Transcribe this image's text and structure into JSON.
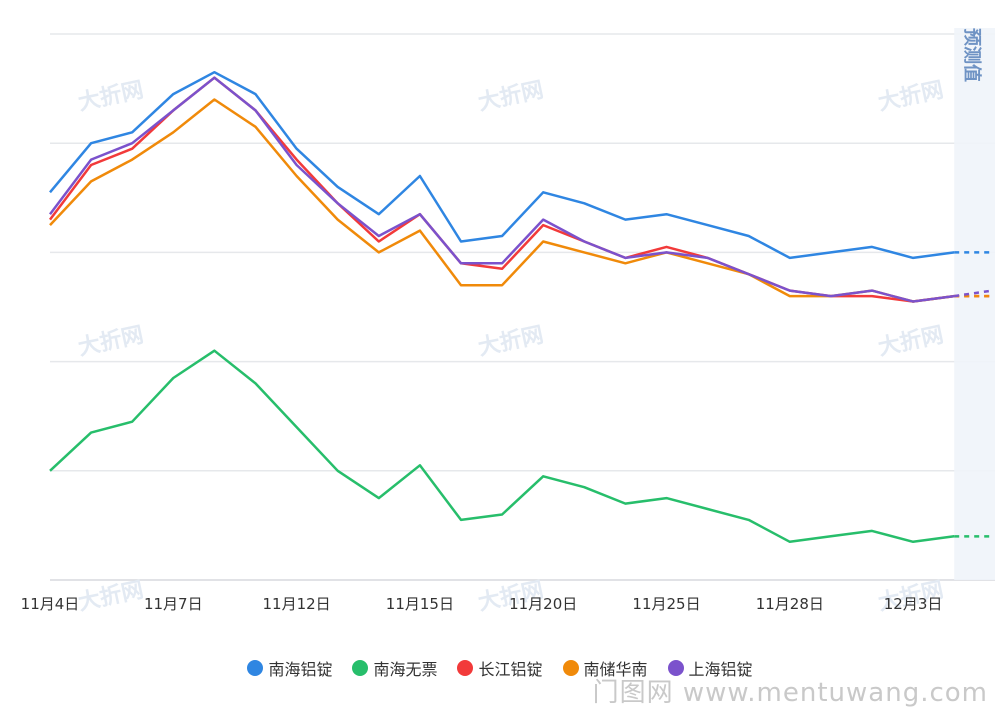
{
  "chart_data": {
    "type": "line",
    "x_tick_labels": [
      "11月4日",
      "11月7日",
      "11月12日",
      "11月15日",
      "11月20日",
      "11月25日",
      "11月28日",
      "12月3日"
    ],
    "x_tick_indices": [
      0,
      3,
      6,
      9,
      12,
      15,
      18,
      21
    ],
    "num_points": 23,
    "forecast_label": "预测值",
    "watermark_text": "大折网",
    "ylim": [
      0,
      100
    ],
    "series": [
      {
        "name": "南海铝锭",
        "color": "#2f86e2",
        "values": [
          71,
          80,
          82,
          89,
          93,
          89,
          79,
          72,
          67,
          74,
          62,
          63,
          71,
          69,
          66,
          67,
          65,
          63,
          59,
          60,
          61,
          59,
          60
        ],
        "forecast": 60
      },
      {
        "name": "南海无票",
        "color": "#27be6b",
        "values": [
          20,
          27,
          29,
          37,
          42,
          36,
          28,
          20,
          15,
          21,
          11,
          12,
          19,
          17,
          14,
          15,
          13,
          11,
          7,
          8,
          9,
          7,
          8
        ],
        "forecast": 8
      },
      {
        "name": "长江铝锭",
        "color": "#f23a3a",
        "values": [
          66,
          76,
          79,
          86,
          92,
          86,
          77,
          69,
          62,
          67,
          58,
          57,
          65,
          62,
          59,
          61,
          59,
          56,
          53,
          52,
          52,
          51,
          52
        ],
        "forecast": 52
      },
      {
        "name": "南储华南",
        "color": "#f08a0a",
        "values": [
          65,
          73,
          77,
          82,
          88,
          83,
          74,
          66,
          60,
          64,
          54,
          54,
          62,
          60,
          58,
          60,
          58,
          56,
          52,
          52,
          53,
          51,
          52
        ],
        "forecast": 52
      },
      {
        "name": "上海铝锭",
        "color": "#7b52cc",
        "values": [
          67,
          77,
          80,
          86,
          92,
          86,
          76,
          69,
          63,
          67,
          58,
          58,
          66,
          62,
          59,
          60,
          59,
          56,
          53,
          52,
          53,
          51,
          52
        ],
        "forecast": 53
      }
    ]
  },
  "site_watermark": "门图网 www.mentuwang.com"
}
